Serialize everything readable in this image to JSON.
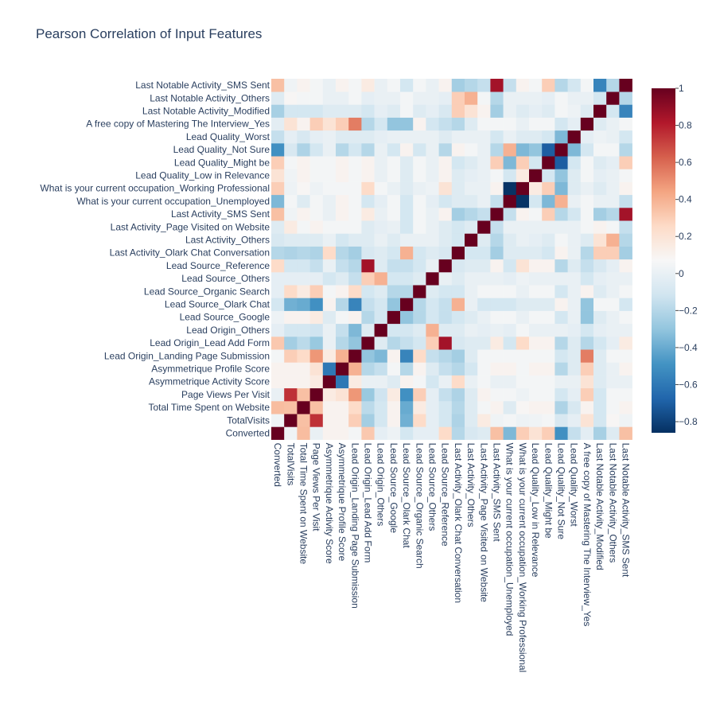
{
  "chart_data": {
    "type": "heatmap",
    "title": "Pearson Correlation of Input Features",
    "labels": [
      "Converted",
      "TotalVisits",
      "Total Time Spent on Website",
      "Page Views Per Visit",
      "Asymmetrique Activity Score",
      "Asymmetrique Profile Score",
      "Lead Origin_Landing Page Submission",
      "Lead Origin_Lead Add Form",
      "Lead Origin_Others",
      "Lead Source_Google",
      "Lead Source_Olark Chat",
      "Lead Source_Organic Search",
      "Lead Source_Others",
      "Lead Source_Reference",
      "Last Activity_Olark Chat Conversation",
      "Last Activity_Others",
      "Last Activity_Page Visited on Website",
      "Last Activity_SMS Sent",
      "What is your current occupation_Unemployed",
      "What is your current occupation_Working Professional",
      "Lead Quality_Low in Relevance",
      "Lead Quality_Might be",
      "Lead Quality_Not Sure",
      "Lead Quality_Worst",
      "A free copy of Mastering The Interview_Yes",
      "Last Notable Activity_Modified",
      "Last Notable Activity_Others",
      "Last Notable Activity_SMS Sent"
    ],
    "z": [
      [
        1.0,
        0.03,
        0.36,
        0.0,
        0.1,
        0.1,
        0.05,
        0.32,
        -0.02,
        0.02,
        -0.1,
        -0.02,
        -0.02,
        0.25,
        -0.2,
        -0.08,
        -0.05,
        0.35,
        -0.35,
        0.3,
        0.2,
        0.3,
        -0.5,
        -0.15,
        -0.03,
        -0.24,
        -0.05,
        0.35
      ],
      [
        0.03,
        1.0,
        0.35,
        0.75,
        0.1,
        0.1,
        0.3,
        -0.25,
        -0.1,
        0.1,
        -0.38,
        0.25,
        -0.02,
        -0.1,
        -0.22,
        -0.05,
        0.15,
        0.03,
        0.05,
        0.02,
        0.03,
        0.05,
        -0.08,
        -0.02,
        0.2,
        -0.1,
        0.08,
        0.03
      ],
      [
        0.36,
        0.35,
        1.0,
        0.35,
        0.1,
        0.1,
        0.25,
        -0.18,
        -0.1,
        0.1,
        -0.4,
        0.15,
        -0.02,
        -0.1,
        -0.2,
        -0.05,
        0.05,
        0.1,
        -0.05,
        0.08,
        0.1,
        0.1,
        -0.22,
        -0.08,
        0.1,
        -0.1,
        0.05,
        0.1
      ],
      [
        0.0,
        0.75,
        0.35,
        1.0,
        0.15,
        0.2,
        0.48,
        -0.28,
        -0.12,
        0.15,
        -0.5,
        0.3,
        -0.02,
        -0.15,
        -0.22,
        -0.05,
        0.1,
        0.05,
        0.05,
        0.02,
        0.05,
        0.05,
        -0.1,
        -0.02,
        0.3,
        -0.1,
        0.05,
        0.05
      ],
      [
        0.1,
        0.1,
        0.1,
        0.15,
        1.0,
        -0.6,
        0.15,
        0.0,
        0.0,
        -0.05,
        0.1,
        0.05,
        -0.1,
        0.0,
        0.25,
        0.0,
        0.05,
        0.0,
        0.0,
        0.05,
        0.05,
        0.05,
        0.0,
        0.0,
        0.2,
        -0.05,
        0.0,
        0.0
      ],
      [
        0.1,
        0.1,
        0.1,
        0.2,
        -0.6,
        1.0,
        0.4,
        -0.2,
        -0.15,
        0.05,
        -0.2,
        0.1,
        -0.05,
        -0.15,
        -0.2,
        -0.1,
        0.05,
        0.1,
        0.1,
        0.05,
        0.1,
        0.1,
        -0.2,
        -0.05,
        0.3,
        -0.05,
        0.0,
        0.1
      ],
      [
        0.05,
        0.3,
        0.25,
        0.48,
        0.15,
        0.4,
        1.0,
        -0.3,
        -0.35,
        0.1,
        -0.55,
        0.25,
        -0.15,
        -0.2,
        -0.25,
        -0.05,
        0.05,
        0.05,
        0.05,
        0.05,
        0.05,
        0.05,
        -0.1,
        -0.05,
        0.55,
        -0.05,
        0.05,
        0.05
      ],
      [
        0.32,
        -0.25,
        -0.18,
        -0.28,
        0.0,
        -0.2,
        -0.3,
        1.0,
        -0.05,
        -0.2,
        -0.15,
        -0.1,
        0.3,
        0.85,
        -0.08,
        -0.05,
        -0.05,
        0.15,
        -0.1,
        0.25,
        0.1,
        0.1,
        -0.2,
        -0.05,
        -0.2,
        -0.1,
        -0.02,
        0.15
      ],
      [
        -0.02,
        -0.1,
        -0.1,
        -0.12,
        0.0,
        -0.15,
        -0.35,
        -0.05,
        1.0,
        -0.1,
        -0.1,
        -0.05,
        0.4,
        -0.05,
        -0.05,
        0.0,
        -0.02,
        0.0,
        -0.02,
        0.05,
        0.0,
        0.0,
        0.0,
        -0.02,
        -0.1,
        -0.02,
        0.0,
        0.0
      ],
      [
        0.02,
        0.1,
        0.1,
        0.15,
        -0.05,
        0.05,
        0.1,
        -0.2,
        -0.1,
        1.0,
        -0.3,
        -0.2,
        -0.1,
        -0.15,
        -0.1,
        -0.05,
        0.0,
        0.05,
        0.05,
        0.0,
        0.05,
        0.05,
        -0.1,
        0.0,
        -0.3,
        -0.05,
        0.0,
        0.05
      ],
      [
        -0.1,
        -0.38,
        -0.4,
        -0.5,
        0.1,
        -0.2,
        -0.55,
        -0.15,
        -0.1,
        -0.3,
        1.0,
        -0.2,
        -0.1,
        -0.15,
        0.4,
        0.0,
        -0.1,
        -0.1,
        -0.1,
        -0.05,
        -0.05,
        -0.05,
        0.1,
        0.0,
        -0.3,
        0.05,
        0.05,
        -0.1
      ],
      [
        -0.02,
        0.25,
        0.15,
        0.3,
        0.05,
        0.1,
        0.25,
        -0.1,
        -0.05,
        -0.2,
        -0.2,
        1.0,
        -0.05,
        -0.1,
        -0.1,
        0.0,
        0.05,
        0.05,
        0.05,
        0.0,
        0.05,
        0.05,
        -0.1,
        0.0,
        0.1,
        -0.05,
        0.0,
        0.05
      ],
      [
        -0.02,
        -0.02,
        -0.02,
        -0.02,
        -0.1,
        -0.05,
        -0.15,
        0.3,
        0.4,
        -0.1,
        -0.1,
        -0.05,
        1.0,
        0.0,
        -0.05,
        0.0,
        0.0,
        0.0,
        -0.02,
        0.02,
        0.0,
        0.0,
        0.0,
        0.0,
        -0.1,
        -0.02,
        0.0,
        0.0
      ],
      [
        0.25,
        -0.1,
        -0.1,
        -0.15,
        0.0,
        -0.15,
        -0.2,
        0.85,
        -0.05,
        -0.15,
        -0.15,
        -0.1,
        0.0,
        1.0,
        -0.08,
        -0.05,
        -0.05,
        0.1,
        -0.1,
        0.2,
        0.1,
        0.1,
        -0.2,
        -0.05,
        -0.15,
        -0.08,
        -0.02,
        0.1
      ],
      [
        -0.2,
        -0.22,
        -0.2,
        -0.22,
        0.25,
        -0.2,
        -0.25,
        -0.08,
        -0.05,
        -0.1,
        0.4,
        -0.1,
        -0.05,
        -0.08,
        1.0,
        -0.1,
        -0.1,
        -0.25,
        -0.05,
        -0.05,
        -0.05,
        -0.1,
        0.1,
        0.0,
        -0.2,
        0.3,
        0.3,
        -0.25
      ],
      [
        -0.08,
        -0.05,
        -0.05,
        -0.05,
        0.0,
        -0.1,
        -0.05,
        -0.05,
        0.0,
        -0.05,
        0.0,
        0.0,
        0.0,
        -0.05,
        -0.1,
        1.0,
        -0.05,
        -0.2,
        -0.05,
        0.0,
        -0.02,
        -0.05,
        0.05,
        0.0,
        -0.05,
        0.2,
        0.4,
        -0.2
      ],
      [
        -0.05,
        0.15,
        0.05,
        0.1,
        0.05,
        0.05,
        0.05,
        -0.05,
        -0.02,
        0.0,
        -0.1,
        0.05,
        0.0,
        -0.05,
        -0.1,
        -0.05,
        1.0,
        -0.15,
        0.0,
        0.0,
        0.0,
        0.0,
        0.0,
        0.0,
        0.05,
        0.1,
        0.05,
        -0.15
      ],
      [
        0.35,
        0.03,
        0.1,
        0.05,
        0.0,
        0.1,
        0.05,
        0.15,
        0.0,
        0.05,
        -0.1,
        0.05,
        0.0,
        0.1,
        -0.25,
        -0.2,
        -0.15,
        1.0,
        -0.15,
        0.1,
        0.05,
        0.3,
        -0.2,
        -0.1,
        0.05,
        -0.25,
        -0.2,
        0.85
      ],
      [
        -0.35,
        0.05,
        -0.05,
        0.05,
        0.0,
        0.1,
        0.05,
        -0.1,
        -0.02,
        0.05,
        -0.1,
        0.05,
        -0.02,
        -0.1,
        -0.05,
        -0.05,
        0.0,
        -0.15,
        1.0,
        -0.85,
        -0.1,
        -0.35,
        0.4,
        0.0,
        0.05,
        0.0,
        0.0,
        -0.15
      ],
      [
        0.3,
        0.02,
        0.08,
        0.02,
        0.05,
        0.05,
        0.05,
        0.25,
        0.05,
        0.0,
        -0.05,
        0.0,
        0.02,
        0.2,
        -0.05,
        0.0,
        0.0,
        0.1,
        -0.85,
        1.0,
        0.15,
        0.3,
        -0.35,
        -0.05,
        0.0,
        -0.05,
        0.0,
        0.1
      ],
      [
        0.2,
        0.03,
        0.1,
        0.05,
        0.05,
        0.1,
        0.05,
        0.1,
        0.0,
        0.05,
        -0.05,
        0.05,
        0.0,
        0.1,
        -0.05,
        -0.02,
        0.0,
        0.05,
        -0.1,
        0.15,
        1.0,
        -0.1,
        -0.3,
        -0.05,
        0.05,
        -0.02,
        0.0,
        0.05
      ],
      [
        0.3,
        0.05,
        0.1,
        0.05,
        0.05,
        0.1,
        0.05,
        0.1,
        0.0,
        0.05,
        -0.05,
        0.05,
        0.0,
        0.1,
        -0.1,
        -0.05,
        0.0,
        0.3,
        -0.35,
        0.3,
        -0.1,
        1.0,
        -0.7,
        -0.1,
        0.05,
        -0.05,
        -0.02,
        0.3
      ],
      [
        -0.5,
        -0.08,
        -0.22,
        -0.1,
        0.0,
        -0.2,
        -0.1,
        -0.2,
        0.0,
        -0.1,
        0.1,
        -0.1,
        0.0,
        -0.2,
        0.1,
        0.05,
        0.0,
        -0.2,
        0.4,
        -0.35,
        -0.3,
        -0.7,
        1.0,
        -0.35,
        -0.1,
        0.05,
        0.05,
        -0.2
      ],
      [
        -0.15,
        -0.02,
        -0.08,
        -0.02,
        0.0,
        -0.05,
        -0.05,
        -0.05,
        -0.02,
        0.0,
        0.0,
        0.0,
        0.0,
        -0.05,
        0.0,
        0.0,
        0.0,
        -0.1,
        0.0,
        -0.05,
        -0.05,
        -0.1,
        -0.35,
        1.0,
        -0.02,
        0.02,
        0.0,
        -0.1
      ],
      [
        -0.03,
        0.2,
        0.1,
        0.3,
        0.2,
        0.3,
        0.55,
        -0.2,
        -0.1,
        -0.3,
        -0.3,
        0.1,
        -0.1,
        -0.15,
        -0.2,
        -0.05,
        0.05,
        0.05,
        0.05,
        0.0,
        0.05,
        0.05,
        -0.1,
        -0.02,
        1.0,
        -0.05,
        0.0,
        0.05
      ],
      [
        -0.24,
        -0.1,
        -0.1,
        -0.1,
        -0.05,
        -0.05,
        -0.05,
        -0.1,
        -0.02,
        -0.05,
        0.05,
        -0.05,
        -0.02,
        -0.08,
        0.3,
        0.2,
        0.1,
        -0.25,
        0.0,
        -0.05,
        -0.02,
        -0.05,
        0.05,
        0.02,
        -0.05,
        1.0,
        -0.1,
        -0.55
      ],
      [
        -0.05,
        0.08,
        0.05,
        0.05,
        0.0,
        0.0,
        0.05,
        -0.02,
        0.0,
        0.0,
        0.05,
        0.0,
        0.0,
        -0.02,
        0.3,
        0.4,
        0.05,
        -0.2,
        0.0,
        0.0,
        0.0,
        -0.02,
        0.05,
        0.0,
        0.0,
        -0.1,
        1.0,
        -0.2
      ],
      [
        0.35,
        0.03,
        0.1,
        0.05,
        0.0,
        0.1,
        0.05,
        0.15,
        0.0,
        0.05,
        -0.1,
        0.05,
        0.0,
        0.1,
        -0.25,
        -0.2,
        -0.15,
        0.85,
        -0.15,
        0.1,
        0.05,
        0.3,
        -0.2,
        -0.1,
        0.05,
        -0.55,
        -0.2,
        1.0
      ]
    ],
    "zmin": -0.86,
    "zmax": 1.0,
    "colorscale": "RdBu",
    "colorbar_ticks": [
      "1",
      "0.8",
      "0.6",
      "0.4",
      "0.2",
      "0",
      "−0.2",
      "−0.4",
      "−0.6",
      "−0.8"
    ],
    "colorbar_tick_values": [
      1,
      0.8,
      0.6,
      0.4,
      0.2,
      0,
      -0.2,
      -0.4,
      -0.6,
      -0.8
    ]
  }
}
